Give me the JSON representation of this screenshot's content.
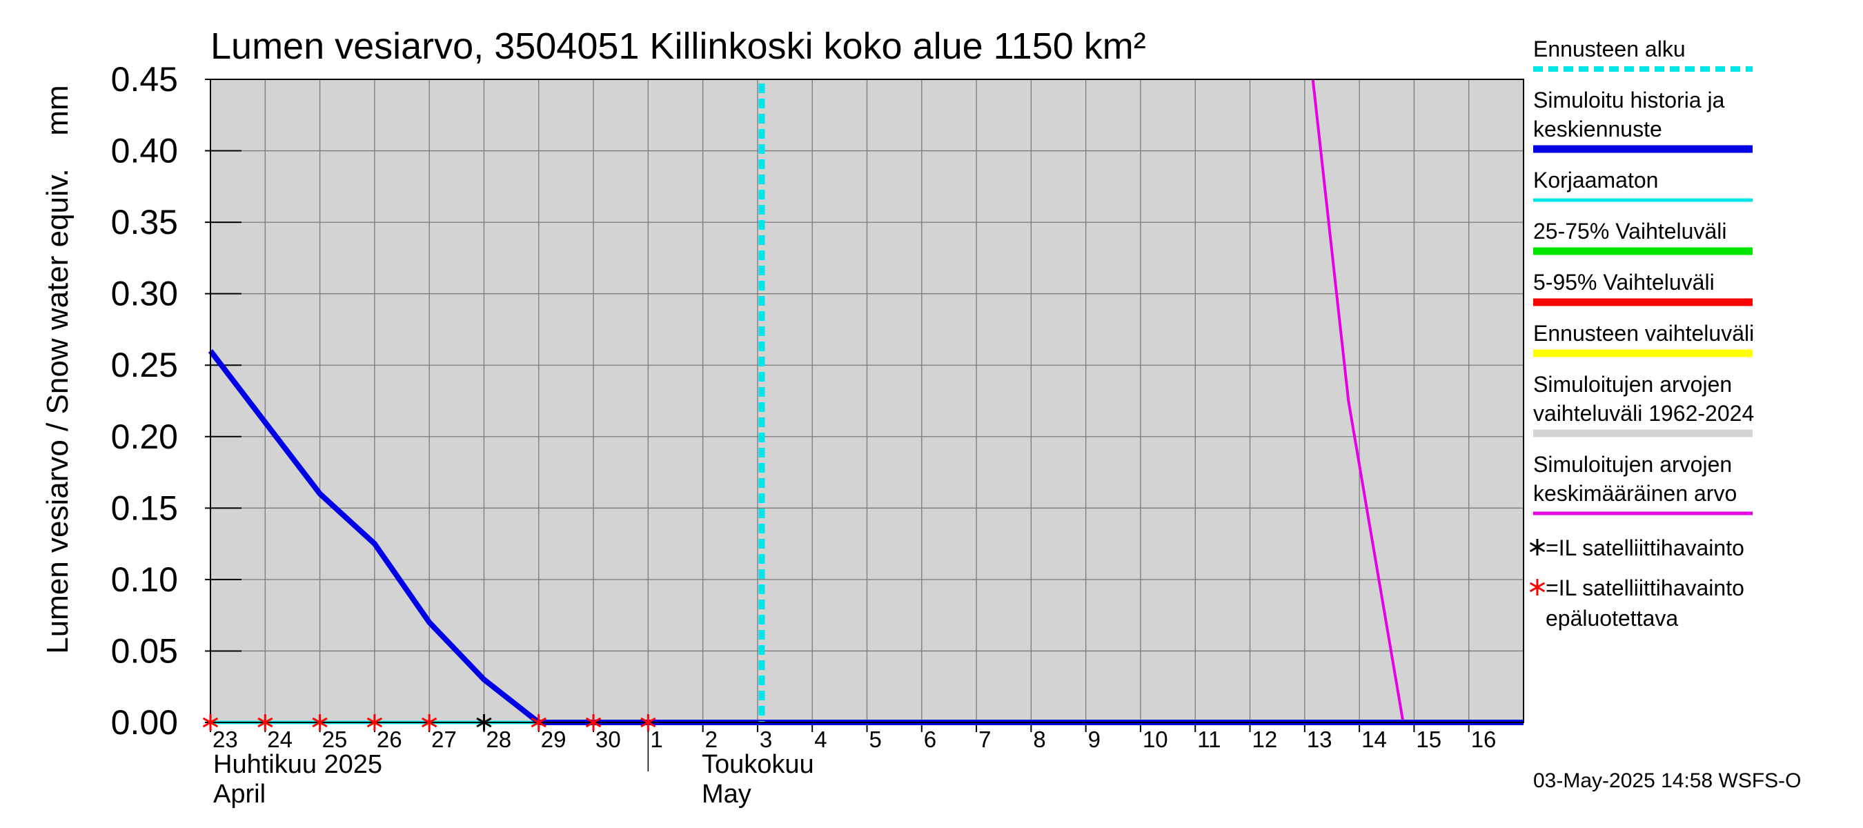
{
  "chart_data": {
    "type": "line",
    "title": "Lumen vesiarvo, 3504051 Killinkoski koko alue 1150 km²",
    "ylabel": "Lumen vesiarvo / Snow water equiv.",
    "yunit": "mm",
    "ylim": [
      0,
      0.45
    ],
    "yticks": [
      "0.00",
      "0.05",
      "0.10",
      "0.15",
      "0.20",
      "0.25",
      "0.30",
      "0.35",
      "0.40",
      "0.45"
    ],
    "x_start": "2025-04-23",
    "x_end": "2025-05-17",
    "grid": true,
    "background": "#d3d3d3",
    "xticks_april": [
      "23",
      "24",
      "25",
      "26",
      "27",
      "28",
      "29",
      "30"
    ],
    "xticks_may": [
      "1",
      "2",
      "3",
      "4",
      "5",
      "6",
      "7",
      "8",
      "9",
      "10",
      "11",
      "12",
      "13",
      "14",
      "15",
      "16"
    ],
    "month_labels": {
      "april_fi": "Huhtikuu  2025",
      "april_en": "April",
      "may_fi": "Toukokuu",
      "may_en": "May"
    },
    "forecast_start": "2025-05-03",
    "series": [
      {
        "name": "Simuloitu historia ja keskiennuste",
        "color": "#0000e6",
        "points": [
          [
            "2025-04-23",
            0.26
          ],
          [
            "2025-04-24",
            0.21
          ],
          [
            "2025-04-25",
            0.16
          ],
          [
            "2025-04-26",
            0.125
          ],
          [
            "2025-04-27",
            0.07
          ],
          [
            "2025-04-28",
            0.03
          ],
          [
            "2025-04-29",
            0.0
          ],
          [
            "2025-05-01",
            0.0
          ],
          [
            "2025-05-17",
            0.0
          ]
        ]
      },
      {
        "name": "Korjaamaton",
        "color": "#00e5e5",
        "points": [
          [
            "2025-04-23",
            0.0
          ],
          [
            "2025-04-29",
            0.0
          ]
        ]
      },
      {
        "name": "Simuloitujen arvojen keskimääräinen arvo",
        "color": "#e600e6",
        "points": [
          [
            "2025-05-13.15",
            0.45
          ],
          [
            "2025-05-13.8",
            0.225
          ],
          [
            "2025-05-14.8",
            0.0
          ],
          [
            "2025-05-17",
            0.0
          ]
        ]
      }
    ],
    "satellite_observations": [
      {
        "date": "2025-04-28",
        "value": 0.0,
        "reliable": true
      }
    ],
    "satellite_observations_unreliable": [
      {
        "date": "2025-04-23",
        "value": 0.0
      },
      {
        "date": "2025-04-24",
        "value": 0.0
      },
      {
        "date": "2025-04-25",
        "value": 0.0
      },
      {
        "date": "2025-04-26",
        "value": 0.0
      },
      {
        "date": "2025-04-27",
        "value": 0.0
      },
      {
        "date": "2025-04-29",
        "value": 0.0
      },
      {
        "date": "2025-04-30",
        "value": 0.0
      },
      {
        "date": "2025-05-01",
        "value": 0.0
      }
    ]
  },
  "legend": [
    {
      "lines": [
        "Ennusteen alku"
      ],
      "color": "#00e5e5",
      "style": "dashed"
    },
    {
      "lines": [
        "Simuloitu historia ja",
        "keskiennuste"
      ],
      "color": "#0000e6",
      "style": "thick"
    },
    {
      "lines": [
        "Korjaamaton"
      ],
      "color": "#00e5e5",
      "style": "solid"
    },
    {
      "lines": [
        "25-75% Vaihteluväli"
      ],
      "color": "#00e600",
      "style": "thick"
    },
    {
      "lines": [
        "5-95% Vaihteluväli"
      ],
      "color": "#ff0000",
      "style": "thick"
    },
    {
      "lines": [
        "Ennusteen vaihteluväli"
      ],
      "color": "#ffff00",
      "style": "thick"
    },
    {
      "lines": [
        "Simuloitujen arvojen",
        "vaihteluväli 1962-2024"
      ],
      "color": "#d3d3d3",
      "style": "thick"
    },
    {
      "lines": [
        "Simuloitujen arvojen",
        "keskimääräinen arvo"
      ],
      "color": "#e600e6",
      "style": "solid"
    }
  ],
  "marker_legend": [
    {
      "symbol": "black-asterisk",
      "color": "#000000",
      "lines": [
        "=IL satelliittihavainto"
      ]
    },
    {
      "symbol": "red-asterisk",
      "color": "#ff0000",
      "lines": [
        "=IL satelliittihavainto",
        "epäluotettava"
      ]
    }
  ],
  "footer": "03-May-2025 14:58 WSFS-O"
}
